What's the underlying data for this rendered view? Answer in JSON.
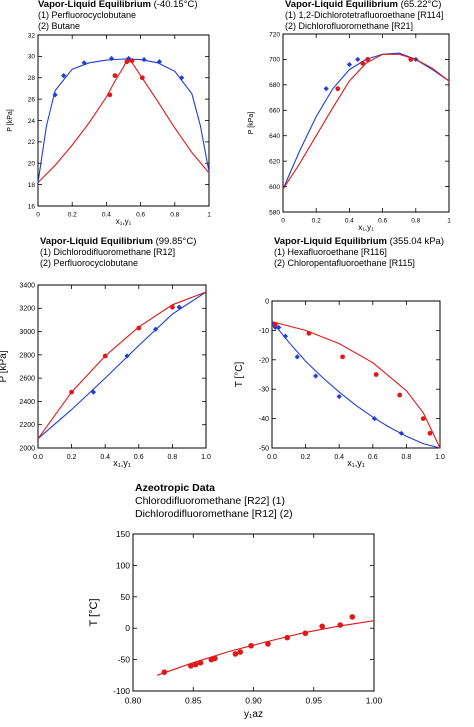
{
  "colors": {
    "blue": "#1f3fd6",
    "red": "#e01818",
    "axis": "#000000",
    "frame": "#000000"
  },
  "chart_data": [
    {
      "type": "scatter",
      "title_bold": "Vapor-Liquid Equilibrium",
      "title_rest": " (-40.15°C)",
      "legend_lines": [
        "(1) Perfluorocyclobutane",
        "(2) Butane"
      ],
      "xlabel": "x₁,y₁",
      "ylabel": "P [kPa]",
      "xlim": [
        0,
        1
      ],
      "ylim": [
        16,
        32
      ],
      "xticks": [
        "0",
        "0.2",
        "0.4",
        "0.6",
        "0.8",
        "1"
      ],
      "yticks": [
        "16",
        "18",
        "20",
        "22",
        "24",
        "26",
        "28",
        "30",
        "32"
      ],
      "grid": false,
      "series": [
        {
          "color": "blue",
          "line": [
            [
              0,
              18.2
            ],
            [
              0.05,
              23.5
            ],
            [
              0.1,
              26.8
            ],
            [
              0.2,
              28.8
            ],
            [
              0.3,
              29.4
            ],
            [
              0.4,
              29.65
            ],
            [
              0.5,
              29.75
            ],
            [
              0.6,
              29.7
            ],
            [
              0.7,
              29.4
            ],
            [
              0.8,
              28.6
            ],
            [
              0.9,
              26.5
            ],
            [
              0.95,
              23.5
            ],
            [
              1,
              19.2
            ]
          ],
          "points": [
            [
              0.1,
              26.4
            ],
            [
              0.15,
              28.2
            ],
            [
              0.27,
              29.4
            ],
            [
              0.43,
              29.8
            ],
            [
              0.53,
              29.8
            ],
            [
              0.62,
              29.7
            ],
            [
              0.71,
              29.5
            ],
            [
              0.84,
              28
            ]
          ]
        },
        {
          "color": "red",
          "line": [
            [
              0,
              18.2
            ],
            [
              0.1,
              19.8
            ],
            [
              0.2,
              21.7
            ],
            [
              0.3,
              23.8
            ],
            [
              0.4,
              26.2
            ],
            [
              0.45,
              27.7
            ],
            [
              0.5,
              29
            ],
            [
              0.52,
              29.7
            ],
            [
              0.55,
              29.4
            ],
            [
              0.6,
              28.2
            ],
            [
              0.7,
              25.8
            ],
            [
              0.8,
              23.3
            ],
            [
              0.9,
              21
            ],
            [
              1,
              19.1
            ]
          ],
          "points": [
            [
              0.42,
              26.4
            ],
            [
              0.45,
              28.2
            ],
            [
              0.52,
              29.5
            ],
            [
              0.55,
              29.6
            ],
            [
              0.61,
              28
            ]
          ]
        }
      ]
    },
    {
      "type": "scatter",
      "title_bold": "Vapor-Liquid Equilibrium",
      "title_rest": " (65.22°C)",
      "legend_lines": [
        "(1) 1,2-Dichlorotetrafluoroethane [R114]",
        "(2) Dichlorofluoromethane [R21]"
      ],
      "xlabel": "x₁,y₁",
      "ylabel": "P [kPa]",
      "xlim": [
        0,
        1
      ],
      "ylim": [
        580,
        720
      ],
      "xticks": [
        "0",
        "0.2",
        "0.4",
        "0.6",
        "0.8",
        "1"
      ],
      "yticks": [
        "580",
        "600",
        "620",
        "640",
        "660",
        "680",
        "700",
        "720"
      ],
      "grid": false,
      "series": [
        {
          "color": "blue",
          "line": [
            [
              0,
              598
            ],
            [
              0.1,
              628
            ],
            [
              0.2,
              655
            ],
            [
              0.3,
              677
            ],
            [
              0.4,
              692
            ],
            [
              0.5,
              700
            ],
            [
              0.6,
              704
            ],
            [
              0.7,
              705
            ],
            [
              0.8,
              700
            ],
            [
              0.9,
              692
            ],
            [
              1,
              683
            ]
          ],
          "points": [
            [
              0.26,
              677
            ],
            [
              0.4,
              696
            ],
            [
              0.45,
              700
            ],
            [
              0.8,
              700
            ]
          ]
        },
        {
          "color": "red",
          "line": [
            [
              0,
              598
            ],
            [
              0.1,
              618
            ],
            [
              0.2,
              640
            ],
            [
              0.3,
              662
            ],
            [
              0.4,
              683
            ],
            [
              0.5,
              697
            ],
            [
              0.6,
              704
            ],
            [
              0.7,
              704
            ],
            [
              0.8,
              700
            ],
            [
              0.9,
              693
            ],
            [
              1,
              683
            ]
          ],
          "points": [
            [
              0.33,
              677
            ],
            [
              0.48,
              697
            ],
            [
              0.51,
              700
            ],
            [
              0.77,
              700
            ]
          ]
        }
      ]
    },
    {
      "type": "scatter",
      "title_bold": "Vapor-Liquid Equilibrium",
      "title_rest": " (99.85°C)",
      "legend_lines": [
        "(1) Dichlorodifluoromethane [R12]",
        "(2) Perfluorocyclobutane"
      ],
      "xlabel": "x₁,y₁",
      "ylabel": "P [kPa]",
      "xlim": [
        0,
        1
      ],
      "ylim": [
        2000,
        3400
      ],
      "xticks": [
        "0.0",
        "0.2",
        "0.4",
        "0.6",
        "0.8",
        "1.0"
      ],
      "yticks": [
        "2000",
        "2200",
        "2400",
        "2600",
        "2800",
        "3000",
        "3200",
        "3400"
      ],
      "grid": false,
      "series": [
        {
          "color": "blue",
          "line": [
            [
              0,
              2080
            ],
            [
              0.2,
              2330
            ],
            [
              0.4,
              2600
            ],
            [
              0.6,
              2880
            ],
            [
              0.8,
              3150
            ],
            [
              1,
              3340
            ]
          ],
          "points": [
            [
              0.33,
              2480
            ],
            [
              0.53,
              2790
            ],
            [
              0.7,
              3020
            ],
            [
              0.84,
              3210
            ]
          ]
        },
        {
          "color": "red",
          "line": [
            [
              0,
              2080
            ],
            [
              0.2,
              2480
            ],
            [
              0.4,
              2790
            ],
            [
              0.6,
              3040
            ],
            [
              0.8,
              3230
            ],
            [
              1,
              3340
            ]
          ],
          "points": [
            [
              0.2,
              2480
            ],
            [
              0.4,
              2790
            ],
            [
              0.6,
              3030
            ],
            [
              0.8,
              3210
            ]
          ]
        }
      ]
    },
    {
      "type": "scatter",
      "title_bold": "Vapor-Liquid Equilibrium",
      "title_rest": " (355.04 kPa)",
      "legend_lines": [
        "(1) Hexafluoroethane [R116]",
        "(2) Chloropentafluoroethane [R115]"
      ],
      "xlabel": "x₁,y₁",
      "ylabel": "T [°C]",
      "xlim": [
        0,
        1
      ],
      "ylim": [
        -50,
        0
      ],
      "xticks": [
        "0.0",
        "0.2",
        "0.4",
        "0.6",
        "0.8",
        "1.0"
      ],
      "yticks": [
        "0",
        "-10",
        "-20",
        "-30",
        "-40",
        "-50"
      ],
      "grid": false,
      "series": [
        {
          "color": "blue",
          "line": [
            [
              0,
              -7
            ],
            [
              0.1,
              -14
            ],
            [
              0.2,
              -20.5
            ],
            [
              0.3,
              -26
            ],
            [
              0.4,
              -31
            ],
            [
              0.5,
              -35.5
            ],
            [
              0.6,
              -39.5
            ],
            [
              0.7,
              -43
            ],
            [
              0.8,
              -46
            ],
            [
              0.9,
              -48.5
            ],
            [
              1,
              -50
            ]
          ],
          "points": [
            [
              0.01,
              -8
            ],
            [
              0.02,
              -9
            ],
            [
              0.04,
              -9
            ],
            [
              0.08,
              -12
            ],
            [
              0.15,
              -19
            ],
            [
              0.26,
              -25.5
            ],
            [
              0.4,
              -32.5
            ],
            [
              0.61,
              -40
            ],
            [
              0.77,
              -45
            ]
          ]
        },
        {
          "color": "red",
          "line": [
            [
              0,
              -7
            ],
            [
              0.2,
              -10
            ],
            [
              0.4,
              -14.5
            ],
            [
              0.6,
              -21
            ],
            [
              0.8,
              -30.5
            ],
            [
              0.9,
              -38
            ],
            [
              1,
              -50
            ]
          ],
          "points": [
            [
              0.02,
              -8
            ],
            [
              0.22,
              -11
            ],
            [
              0.42,
              -19
            ],
            [
              0.62,
              -25
            ],
            [
              0.76,
              -32
            ],
            [
              0.9,
              -40
            ],
            [
              0.94,
              -45
            ]
          ]
        }
      ]
    },
    {
      "type": "scatter",
      "title_bold": "Azeotropic Data",
      "title_rest": "",
      "legend_lines": [
        "Chlorodifluoromethane [R22] (1)",
        "Dichlorodifluoromethane [R12] (2)"
      ],
      "xlabel": "y₁az",
      "ylabel": "T [°C]",
      "xlim": [
        0.8,
        1.0
      ],
      "ylim": [
        -100,
        150
      ],
      "xticks": [
        "0.80",
        "0.85",
        "0.90",
        "0.95",
        "1.00"
      ],
      "yticks": [
        "150",
        "100",
        "50",
        "0",
        "-50",
        "-100"
      ],
      "grid": false,
      "series": [
        {
          "color": "red",
          "line": [
            [
              0.82,
              -75
            ],
            [
              0.85,
              -55
            ],
            [
              0.88,
              -37
            ],
            [
              0.91,
              -22
            ],
            [
              0.94,
              -8
            ],
            [
              0.97,
              3
            ],
            [
              1.0,
              12
            ]
          ],
          "points": [
            [
              0.826,
              -70
            ],
            [
              0.848,
              -60
            ],
            [
              0.852,
              -58
            ],
            [
              0.856,
              -55
            ],
            [
              0.865,
              -50
            ],
            [
              0.868,
              -48
            ],
            [
              0.885,
              -41
            ],
            [
              0.889,
              -38
            ],
            [
              0.898,
              -28
            ],
            [
              0.912,
              -25
            ],
            [
              0.928,
              -15
            ],
            [
              0.943,
              -8
            ],
            [
              0.957,
              3
            ],
            [
              0.972,
              5
            ],
            [
              0.982,
              18
            ]
          ]
        }
      ]
    }
  ]
}
